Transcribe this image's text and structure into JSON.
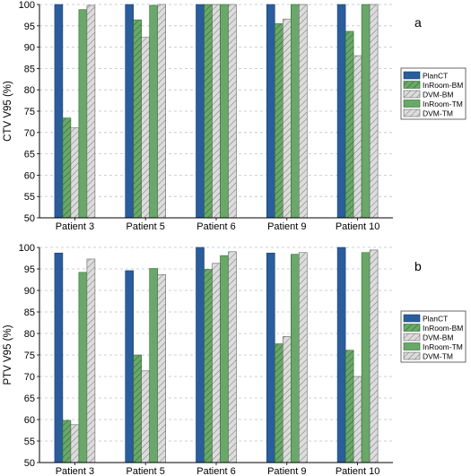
{
  "chart_data": [
    {
      "type": "bar",
      "panel_label": "a",
      "ylabel": "CTV V95 (%)",
      "ylim": [
        50,
        100
      ],
      "yticks": [
        "50",
        "55",
        "60",
        "65",
        "70",
        "75",
        "80",
        "85",
        "90",
        "95",
        "100"
      ],
      "categories": [
        "Patient 3",
        "Patient 5",
        "Patient 6",
        "Patient 9",
        "Patient 10"
      ],
      "grid": "horizontal dashed",
      "legend_position": "right",
      "series": [
        {
          "name": "PlanCT",
          "values": [
            100,
            100,
            100,
            100,
            100
          ]
        },
        {
          "name": "InRoom-BM",
          "values": [
            73.4,
            96.4,
            100,
            95.5,
            93.7
          ]
        },
        {
          "name": "DVM-BM",
          "values": [
            71.1,
            92.3,
            100,
            96.6,
            88.0
          ]
        },
        {
          "name": "InRoom-TM",
          "values": [
            98.8,
            99.8,
            100,
            100,
            100
          ]
        },
        {
          "name": "DVM-TM",
          "values": [
            99.8,
            100,
            100,
            100,
            100
          ]
        }
      ]
    },
    {
      "type": "bar",
      "panel_label": "b",
      "ylabel": "PTV V95 (%)",
      "ylim": [
        50,
        100
      ],
      "yticks": [
        "50",
        "55",
        "60",
        "65",
        "70",
        "75",
        "80",
        "85",
        "90",
        "95",
        "100"
      ],
      "categories": [
        "Patient 3",
        "Patient 5",
        "Patient 6",
        "Patient 9",
        "Patient 10"
      ],
      "grid": "horizontal dashed",
      "legend_position": "right",
      "series": [
        {
          "name": "PlanCT",
          "values": [
            98.7,
            94.6,
            100,
            98.7,
            100
          ]
        },
        {
          "name": "InRoom-BM",
          "values": [
            59.8,
            75.0,
            94.9,
            77.6,
            76.1
          ]
        },
        {
          "name": "DVM-BM",
          "values": [
            58.8,
            71.3,
            96.3,
            79.3,
            70.0
          ]
        },
        {
          "name": "InRoom-TM",
          "values": [
            94.2,
            95.1,
            98.1,
            98.4,
            98.8
          ]
        },
        {
          "name": "DVM-TM",
          "values": [
            97.3,
            93.7,
            99.0,
            98.8,
            99.4
          ]
        }
      ]
    }
  ],
  "colors": {
    "PlanCT": "#2a5d9c",
    "InRoom-BM": "#6aa86a",
    "DVM-BM": "#d0d0d0",
    "InRoom-TM": "#6aa86a",
    "DVM-TM": "#d0d0d0"
  }
}
